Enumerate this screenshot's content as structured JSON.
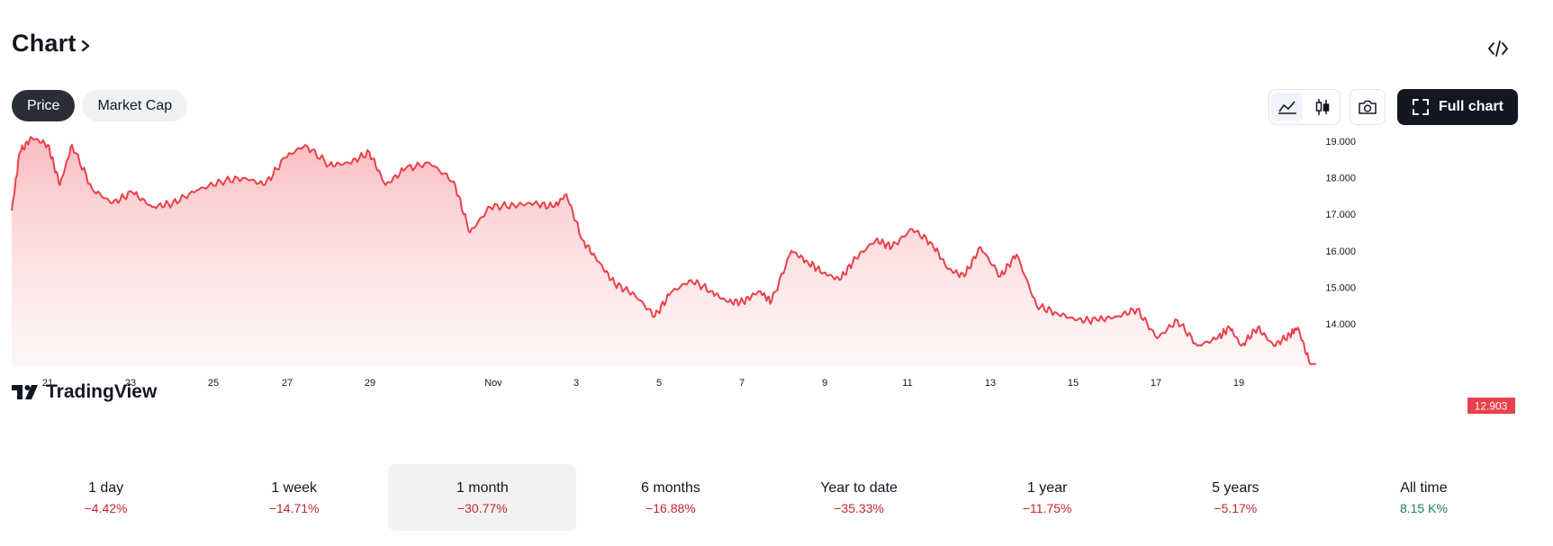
{
  "header": {
    "title": "Chart"
  },
  "tabs": [
    {
      "label": "Price",
      "active": true
    },
    {
      "label": "Market Cap",
      "active": false
    }
  ],
  "toolbar": {
    "icons": [
      "area-chart-icon",
      "candlestick-icon",
      "camera-icon",
      "fullscreen-icon",
      "embed-code-icon"
    ],
    "full_chart_label": "Full chart"
  },
  "branding": {
    "logo_text": "TradingView"
  },
  "colors": {
    "line": "#e8414b",
    "accent_dark": "#131722",
    "negative": "#c2262f",
    "positive": "#1a7f5a"
  },
  "chart_data": {
    "type": "area",
    "y_ticks": [
      "19.000",
      "18.000",
      "17.000",
      "16.000",
      "15.000",
      "14.000"
    ],
    "x_ticks": [
      "21",
      "23",
      "25",
      "27",
      "29",
      "Nov",
      "3",
      "5",
      "7",
      "9",
      "11",
      "13",
      "15",
      "17",
      "19"
    ],
    "ylim": [
      12.75,
      19.2
    ],
    "last_value_label": "12.903",
    "last_value": 12.903,
    "series": [
      {
        "x_day_offsets": [
          0,
          0.2,
          0.5,
          0.9,
          1.2,
          1.5,
          2.0,
          2.5,
          3.0,
          3.5,
          4.0,
          4.6,
          5.2,
          5.8,
          6.3,
          6.8,
          7.3,
          7.9,
          8.4,
          8.9,
          9.3,
          9.8,
          10.4,
          11.0,
          11.4,
          11.9,
          12.5,
          13.0,
          13.5,
          13.8,
          14.2,
          14.6,
          15.0,
          15.5,
          16.0,
          16.4,
          16.9,
          17.4,
          17.8,
          18.2,
          18.6,
          18.9,
          19.4,
          19.8,
          20.2,
          20.6,
          21.0,
          21.5,
          21.9,
          22.4,
          22.9,
          23.3,
          23.7,
          24.1,
          24.6,
          25.0,
          25.5,
          26.0,
          26.5,
          27.0,
          27.5,
          28.0,
          28.5,
          29.0,
          29.5,
          30.0,
          30.3,
          30.6,
          31.0,
          31.4,
          31.8,
          32.0,
          32.3
        ],
        "values": [
          17.1,
          18.7,
          19.1,
          18.9,
          17.8,
          18.9,
          17.7,
          17.3,
          17.6,
          17.2,
          17.3,
          17.65,
          17.9,
          18.0,
          17.8,
          18.55,
          18.9,
          18.35,
          18.4,
          18.7,
          17.8,
          18.25,
          18.4,
          17.9,
          16.5,
          17.2,
          17.25,
          17.3,
          17.2,
          17.55,
          16.3,
          15.7,
          15.1,
          14.8,
          14.2,
          14.85,
          15.2,
          14.9,
          14.6,
          14.6,
          14.9,
          14.6,
          16.0,
          15.7,
          15.4,
          15.2,
          15.8,
          16.3,
          16.1,
          16.6,
          16.2,
          15.5,
          15.3,
          16.1,
          15.3,
          15.9,
          14.5,
          14.3,
          14.1,
          14.1,
          14.2,
          14.4,
          13.6,
          14.1,
          13.4,
          13.6,
          13.9,
          13.4,
          13.9,
          13.4,
          13.7,
          13.9,
          12.9
        ],
        "start_label": "21",
        "note": "approximate trace read from chart"
      }
    ]
  },
  "periods": [
    {
      "label": "1 day",
      "value": "−4.42%",
      "tone": "neg",
      "selected": false
    },
    {
      "label": "1 week",
      "value": "−14.71%",
      "tone": "neg",
      "selected": false
    },
    {
      "label": "1 month",
      "value": "−30.77%",
      "tone": "neg",
      "selected": true
    },
    {
      "label": "6 months",
      "value": "−16.88%",
      "tone": "neg",
      "selected": false
    },
    {
      "label": "Year to date",
      "value": "−35.33%",
      "tone": "neg",
      "selected": false
    },
    {
      "label": "1 year",
      "value": "−11.75%",
      "tone": "neg",
      "selected": false
    },
    {
      "label": "5 years",
      "value": "−5.17%",
      "tone": "neg",
      "selected": false
    },
    {
      "label": "All time",
      "value": "8.15 K%",
      "tone": "pos",
      "selected": false
    }
  ]
}
